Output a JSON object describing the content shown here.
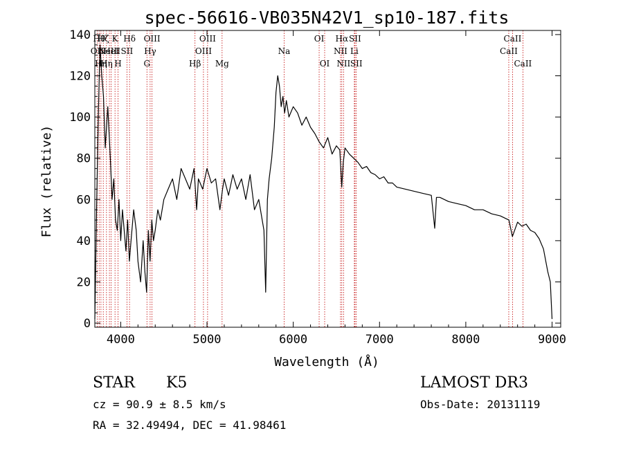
{
  "chart_data": {
    "type": "line",
    "title": "spec-56616-VB035N42V1_sp10-187.fits",
    "xlabel": "Wavelength (Å)",
    "ylabel": "Flux (relative)",
    "xlim": [
      3700,
      9100
    ],
    "ylim": [
      -2,
      142
    ],
    "xticks": [
      4000,
      5000,
      6000,
      7000,
      8000,
      9000
    ],
    "yticks": [
      0,
      20,
      40,
      60,
      80,
      100,
      120,
      140
    ],
    "line_color": "#000000",
    "marker_color": "#c00000",
    "spectrum": {
      "x": [
        3700,
        3720,
        3740,
        3760,
        3780,
        3800,
        3820,
        3850,
        3880,
        3900,
        3920,
        3940,
        3960,
        3980,
        4000,
        4020,
        4040,
        4060,
        4080,
        4100,
        4120,
        4150,
        4180,
        4200,
        4230,
        4260,
        4280,
        4300,
        4320,
        4340,
        4360,
        4380,
        4400,
        4430,
        4460,
        4500,
        4550,
        4600,
        4650,
        4700,
        4750,
        4800,
        4850,
        4880,
        4900,
        4950,
        5000,
        5050,
        5100,
        5150,
        5180,
        5200,
        5250,
        5300,
        5350,
        5400,
        5450,
        5500,
        5550,
        5600,
        5640,
        5660,
        5680,
        5700,
        5720,
        5750,
        5780,
        5800,
        5820,
        5840,
        5860,
        5880,
        5900,
        5920,
        5950,
        6000,
        6050,
        6100,
        6150,
        6200,
        6250,
        6300,
        6350,
        6400,
        6450,
        6500,
        6540,
        6562,
        6580,
        6600,
        6650,
        6700,
        6750,
        6800,
        6850,
        6900,
        6950,
        7000,
        7050,
        7100,
        7150,
        7200,
        7300,
        7400,
        7500,
        7600,
        7640,
        7660,
        7700,
        7800,
        7900,
        8000,
        8100,
        8200,
        8300,
        8400,
        8500,
        8540,
        8600,
        8650,
        8700,
        8750,
        8800,
        8850,
        8900,
        8950,
        8980,
        9000
      ],
      "y": [
        2,
        55,
        100,
        135,
        120,
        110,
        85,
        105,
        80,
        60,
        70,
        50,
        45,
        60,
        40,
        55,
        45,
        35,
        50,
        30,
        40,
        55,
        45,
        30,
        20,
        40,
        25,
        15,
        45,
        30,
        50,
        40,
        45,
        55,
        50,
        60,
        65,
        70,
        60,
        75,
        70,
        65,
        75,
        55,
        70,
        65,
        75,
        68,
        70,
        55,
        65,
        70,
        62,
        72,
        65,
        70,
        60,
        72,
        55,
        60,
        50,
        45,
        15,
        60,
        70,
        80,
        95,
        112,
        120,
        115,
        105,
        110,
        102,
        108,
        100,
        105,
        102,
        96,
        100,
        95,
        92,
        88,
        85,
        90,
        82,
        86,
        84,
        66,
        78,
        85,
        82,
        80,
        78,
        75,
        76,
        73,
        72,
        70,
        71,
        68,
        68,
        66,
        65,
        64,
        63,
        62,
        46,
        61,
        61,
        59,
        58,
        57,
        55,
        55,
        53,
        52,
        50,
        42,
        49,
        47,
        48,
        45,
        44,
        41,
        36,
        25,
        20,
        2
      ]
    },
    "lines": [
      {
        "wl": 3727,
        "name": "OII",
        "row": 1
      },
      {
        "wl": 3750,
        "name": "Hθ",
        "row": 0
      },
      {
        "wl": 3771,
        "name": "Hη",
        "row": 2
      },
      {
        "wl": 3798,
        "name": "Hζ",
        "row": 0
      },
      {
        "wl": 3835,
        "name": "Hη",
        "row": 2
      },
      {
        "wl": 3869,
        "name": "NeIII",
        "row": 1
      },
      {
        "wl": 3889,
        "name": "HeI",
        "row": 1
      },
      {
        "wl": 3934,
        "name": "K",
        "row": 0
      },
      {
        "wl": 3969,
        "name": "H",
        "row": 2
      },
      {
        "wl": 4072,
        "name": "SII",
        "row": 1
      },
      {
        "wl": 4102,
        "name": "Hδ",
        "row": 0
      },
      {
        "wl": 4304,
        "name": "G",
        "row": 2
      },
      {
        "wl": 4341,
        "name": "Hγ",
        "row": 1
      },
      {
        "wl": 4363,
        "name": "OIII",
        "row": 0
      },
      {
        "wl": 4861,
        "name": "Hβ",
        "row": 2
      },
      {
        "wl": 4959,
        "name": "OIII",
        "row": 1
      },
      {
        "wl": 5007,
        "name": "OIII",
        "row": 0
      },
      {
        "wl": 5175,
        "name": "Mg",
        "row": 2
      },
      {
        "wl": 5894,
        "name": "Na",
        "row": 1
      },
      {
        "wl": 6300,
        "name": "OI",
        "row": 0
      },
      {
        "wl": 6364,
        "name": "OI",
        "row": 2
      },
      {
        "wl": 6548,
        "name": "NII",
        "row": 1
      },
      {
        "wl": 6563,
        "name": "Hα",
        "row": 0
      },
      {
        "wl": 6583,
        "name": "NII",
        "row": 2
      },
      {
        "wl": 6708,
        "name": "Li",
        "row": 1
      },
      {
        "wl": 6716,
        "name": "SII",
        "row": 0
      },
      {
        "wl": 6731,
        "name": "SII",
        "row": 2
      },
      {
        "wl": 8498,
        "name": "CaII",
        "row": 1
      },
      {
        "wl": 8542,
        "name": "CaII",
        "row": 0
      },
      {
        "wl": 8662,
        "name": "CaII",
        "row": 2
      }
    ]
  },
  "info": {
    "object_class": "STAR",
    "subclass": "K5",
    "survey": "LAMOST DR3",
    "cz": "cz = 90.9 ± 8.5 km/s",
    "obs_date": "Obs-Date: 20131119",
    "coords": "RA =  32.49494, DEC =  41.98461"
  }
}
